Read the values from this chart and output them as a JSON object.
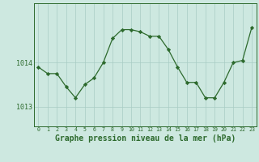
{
  "hours": [
    0,
    1,
    2,
    3,
    4,
    5,
    6,
    7,
    8,
    9,
    10,
    11,
    12,
    13,
    14,
    15,
    16,
    17,
    18,
    19,
    20,
    21,
    22,
    23
  ],
  "pressure": [
    1013.9,
    1013.75,
    1013.75,
    1013.45,
    1013.2,
    1013.5,
    1013.65,
    1014.0,
    1014.55,
    1014.75,
    1014.75,
    1014.7,
    1014.6,
    1014.6,
    1014.3,
    1013.9,
    1013.55,
    1013.55,
    1013.2,
    1013.2,
    1013.55,
    1014.0,
    1014.05,
    1014.8
  ],
  "line_color": "#2d6a2d",
  "marker_color": "#2d6a2d",
  "bg_color": "#cde8e0",
  "grid_color": "#a8ccc4",
  "axis_color": "#2d6a2d",
  "title": "Graphe pression niveau de la mer (hPa)",
  "title_color": "#2d6a2d",
  "ylim_min": 1012.55,
  "ylim_max": 1015.35,
  "ytick_positions": [
    1013,
    1014
  ],
  "outer_bg": "#cde8e0"
}
